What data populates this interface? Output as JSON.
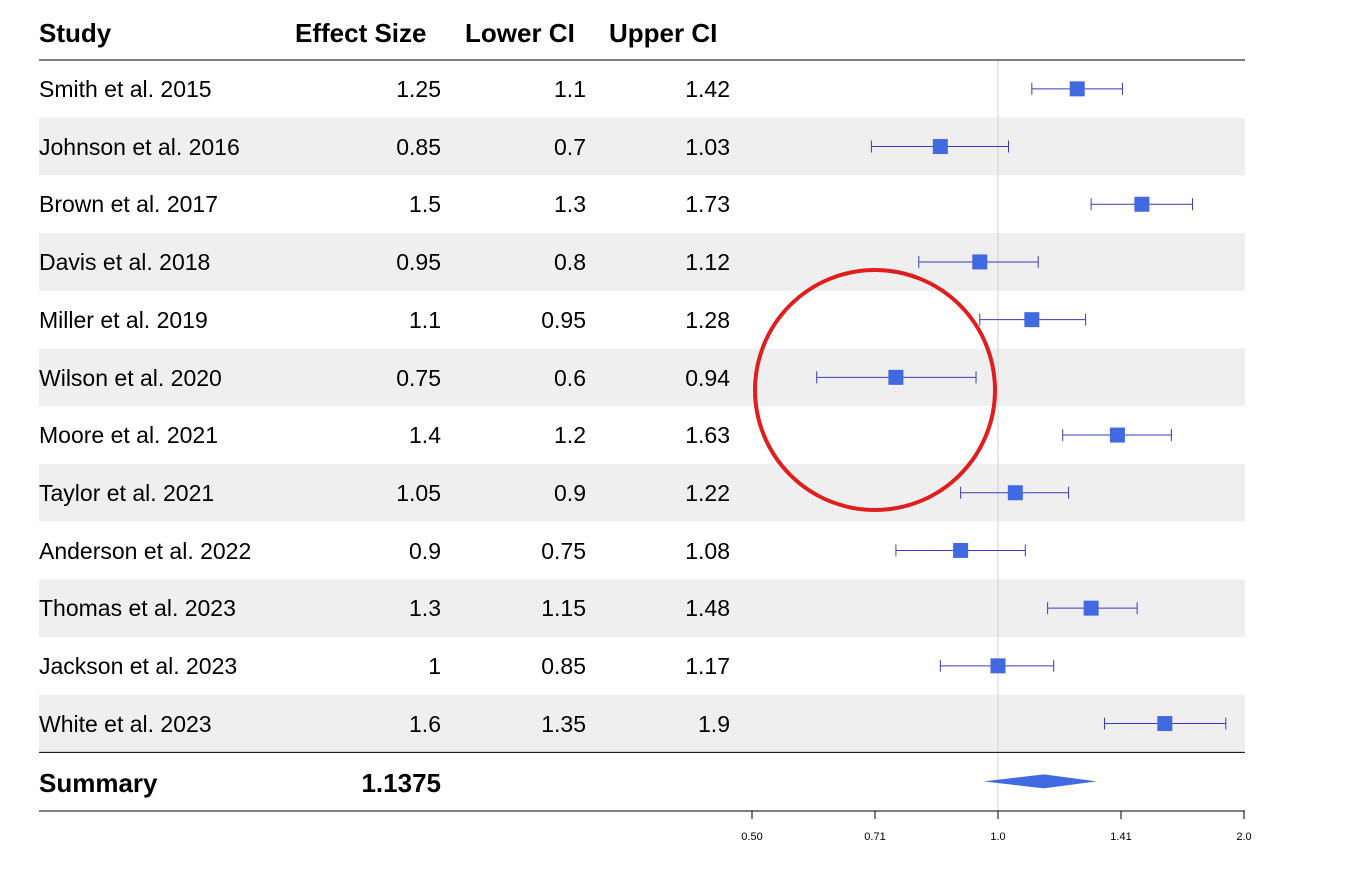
{
  "chart_data": {
    "type": "forest",
    "columns": [
      "Study",
      "Effect Size",
      "Lower CI",
      "Upper CI"
    ],
    "rows": [
      {
        "study": "Smith et al. 2015",
        "effect": 1.25,
        "lower": 1.1,
        "upper": 1.42
      },
      {
        "study": "Johnson et al. 2016",
        "effect": 0.85,
        "lower": 0.7,
        "upper": 1.03
      },
      {
        "study": "Brown et al. 2017",
        "effect": 1.5,
        "lower": 1.3,
        "upper": 1.73
      },
      {
        "study": "Davis et al. 2018",
        "effect": 0.95,
        "lower": 0.8,
        "upper": 1.12
      },
      {
        "study": "Miller et al. 2019",
        "effect": 1.1,
        "lower": 0.95,
        "upper": 1.28
      },
      {
        "study": "Wilson et al. 2020",
        "effect": 0.75,
        "lower": 0.6,
        "upper": 0.94
      },
      {
        "study": "Moore et al. 2021",
        "effect": 1.4,
        "lower": 1.2,
        "upper": 1.63
      },
      {
        "study": "Taylor et al. 2021",
        "effect": 1.05,
        "lower": 0.9,
        "upper": 1.22
      },
      {
        "study": "Anderson et al. 2022",
        "effect": 0.9,
        "lower": 0.75,
        "upper": 1.08
      },
      {
        "study": "Thomas et al. 2023",
        "effect": 1.3,
        "lower": 1.15,
        "upper": 1.48
      },
      {
        "study": "Jackson et al. 2023",
        "effect": 1,
        "lower": 0.85,
        "upper": 1.17
      },
      {
        "study": "White et al. 2023",
        "effect": 1.6,
        "lower": 1.35,
        "upper": 1.9
      }
    ],
    "summary": {
      "label": "Summary",
      "effect": "1.1375",
      "lower": 0.96,
      "upper": 1.32
    },
    "x_scale": "log2",
    "xlim": [
      0.5,
      2.0
    ],
    "x_ticks": [
      "0.50",
      "0.71",
      "1.0",
      "1.41",
      "2.0"
    ],
    "x_tick_values": [
      0.5,
      0.7071,
      1.0,
      1.4142,
      2.0
    ],
    "reference_line": 1.0,
    "annotation": "red circle around Wilson et al. 2020 interval",
    "colors": {
      "marker": "#4169e1",
      "whisker": "#3b3bbd",
      "stripe": "#efefef",
      "reference": "#d3d3d3",
      "highlight": "#e01e1e"
    }
  }
}
